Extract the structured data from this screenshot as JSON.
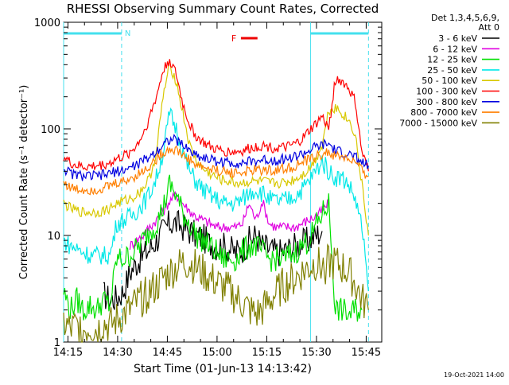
{
  "chart_data": {
    "type": "line",
    "title": "RHESSI Observing Summary Count Rates, Corrected",
    "xlabel": "Start Time (01-Jun-13 14:13:42)",
    "ylabel": "Corrected Count Rate (s⁻¹ detector⁻¹)",
    "y_scale": "log",
    "xlim_minutes": [
      0,
      96
    ],
    "ylim": [
      1,
      1000
    ],
    "x_ticks": [
      {
        "t": 1.3,
        "label": "14:15"
      },
      {
        "t": 16.3,
        "label": "14:30"
      },
      {
        "t": 31.3,
        "label": "14:45"
      },
      {
        "t": 46.3,
        "label": "15:00"
      },
      {
        "t": 61.3,
        "label": "15:15"
      },
      {
        "t": 76.3,
        "label": "15:30"
      },
      {
        "t": 91.3,
        "label": "15:45"
      }
    ],
    "y_ticks": [
      {
        "v": 1,
        "label": "1"
      },
      {
        "v": 10,
        "label": "10"
      },
      {
        "v": 100,
        "label": "100"
      },
      {
        "v": 1000,
        "label": "1000"
      }
    ],
    "legend_header": [
      "Det 1,3,4,5,6,9,",
      "Att 0"
    ],
    "legend_position": "right",
    "flare_marker": {
      "label": "F",
      "t_start": 53.5,
      "t_end": 58.5,
      "color": "#ee0000"
    },
    "night_marker": {
      "label": "N",
      "t_start": 0,
      "t_end": 17.5
    },
    "intervals": [
      [
        0,
        17.5
      ],
      [
        74.5,
        92
      ]
    ],
    "interval_color": "#44e0ee",
    "series": [
      {
        "name": "3 - 6 keV",
        "color": "#000000",
        "t": [
          12,
          14,
          16,
          18,
          20,
          22,
          24,
          26,
          28,
          30,
          32,
          34,
          36,
          38,
          40,
          42,
          44,
          46,
          48,
          50,
          52,
          54,
          56,
          58,
          60,
          62,
          64,
          66,
          68,
          70,
          72,
          74,
          76,
          78
        ],
        "v": [
          2.8,
          2.5,
          2.6,
          3.0,
          4.5,
          5.5,
          6.5,
          7.5,
          9,
          11,
          13,
          13,
          12,
          11,
          10,
          9.5,
          8.5,
          8,
          8,
          7.5,
          7,
          7.5,
          9,
          10,
          8,
          7.5,
          7,
          7,
          7.5,
          8,
          8.5,
          9,
          10,
          11
        ]
      },
      {
        "name": "6 - 12 keV",
        "color": "#e000e0",
        "t": [
          20,
          22,
          24,
          26,
          28,
          30,
          32,
          34,
          36,
          38,
          40,
          42,
          44,
          46,
          48,
          50,
          52,
          54,
          56,
          58,
          60,
          62,
          64,
          66,
          68,
          70,
          72,
          74,
          76,
          78,
          80
        ],
        "v": [
          8,
          9,
          10,
          12,
          14,
          17,
          21,
          24,
          20,
          17,
          15,
          14,
          13,
          12,
          12,
          12,
          12,
          13,
          20,
          14,
          21,
          13,
          12,
          12,
          12,
          12,
          13,
          14,
          15,
          17,
          20
        ]
      },
      {
        "name": "12 - 25 keV",
        "color": "#00e000",
        "t": [
          0,
          2,
          4,
          6,
          8,
          10,
          12,
          14,
          16,
          18,
          20,
          22,
          24,
          26,
          28,
          30,
          32,
          34,
          36,
          38,
          40,
          42,
          44,
          46,
          48,
          50,
          52,
          54,
          56,
          58,
          60,
          62,
          64,
          66,
          68,
          70,
          72,
          74,
          76,
          78,
          80,
          82,
          84,
          86,
          88,
          90
        ],
        "v": [
          3,
          2,
          2.5,
          2,
          2.2,
          2,
          2.5,
          2.2,
          6,
          6,
          6.5,
          7.5,
          9,
          11,
          13,
          18,
          30,
          24,
          16,
          13,
          10,
          9,
          8,
          7,
          6,
          6,
          6,
          7,
          8,
          8,
          7,
          6,
          6,
          6,
          6.5,
          7,
          8,
          9,
          12,
          16,
          20,
          2,
          2,
          1.8,
          2,
          2
        ]
      },
      {
        "name": "25 - 50 keV",
        "color": "#00e8e8",
        "t": [
          0,
          2,
          4,
          6,
          8,
          10,
          12,
          14,
          16,
          18,
          20,
          22,
          24,
          26,
          28,
          30,
          32,
          34,
          36,
          38,
          40,
          42,
          44,
          46,
          48,
          50,
          52,
          54,
          56,
          58,
          60,
          62,
          64,
          66,
          68,
          70,
          72,
          74,
          76,
          78,
          80,
          82,
          84,
          86,
          88,
          90,
          92
        ],
        "v": [
          9,
          8,
          7.5,
          7,
          6.5,
          6.5,
          6.5,
          6.5,
          13,
          14,
          15,
          17,
          20,
          25,
          35,
          60,
          140,
          100,
          60,
          40,
          32,
          27,
          24,
          22,
          20,
          20,
          20,
          22,
          25,
          27,
          25,
          22,
          21,
          21,
          22,
          24,
          27,
          32,
          40,
          50,
          40,
          35,
          35,
          30,
          22,
          12,
          3
        ]
      },
      {
        "name": "50 - 100 keV",
        "color": "#d8c800",
        "t": [
          0,
          2,
          4,
          6,
          8,
          10,
          12,
          14,
          16,
          18,
          20,
          22,
          24,
          26,
          28,
          30,
          32,
          34,
          36,
          38,
          40,
          42,
          44,
          46,
          48,
          50,
          52,
          54,
          56,
          58,
          60,
          62,
          64,
          66,
          68,
          70,
          72,
          74,
          76,
          78,
          80,
          82,
          84,
          86,
          88,
          90,
          92
        ],
        "v": [
          20,
          18,
          17,
          16.5,
          16.5,
          16.5,
          17,
          18,
          20,
          21,
          22,
          24,
          28,
          35,
          60,
          200,
          400,
          280,
          140,
          70,
          50,
          42,
          38,
          35,
          33,
          32,
          31,
          31,
          32,
          32,
          32,
          31,
          31,
          31,
          32,
          34,
          37,
          42,
          52,
          70,
          150,
          160,
          140,
          120,
          90,
          30,
          10
        ]
      },
      {
        "name": "100 - 300 keV",
        "color": "#ff0000",
        "t": [
          0,
          2,
          4,
          6,
          8,
          10,
          12,
          14,
          16,
          18,
          20,
          22,
          24,
          26,
          28,
          30,
          32,
          34,
          36,
          38,
          40,
          42,
          44,
          46,
          48,
          50,
          52,
          54,
          56,
          58,
          60,
          62,
          64,
          66,
          68,
          70,
          72,
          74,
          76,
          78,
          80,
          82,
          84,
          86,
          88,
          90,
          92
        ],
        "v": [
          55,
          48,
          45,
          44,
          44,
          45,
          46,
          48,
          52,
          55,
          60,
          70,
          90,
          130,
          200,
          350,
          450,
          320,
          170,
          110,
          85,
          75,
          68,
          64,
          62,
          61,
          61,
          62,
          65,
          68,
          70,
          68,
          66,
          66,
          68,
          72,
          80,
          95,
          110,
          130,
          100,
          290,
          280,
          240,
          180,
          60,
          40
        ]
      },
      {
        "name": "300 - 800 keV",
        "color": "#0000e0",
        "t": [
          0,
          2,
          4,
          6,
          8,
          10,
          12,
          14,
          16,
          18,
          20,
          22,
          24,
          26,
          28,
          30,
          32,
          34,
          36,
          38,
          40,
          42,
          44,
          46,
          48,
          50,
          52,
          54,
          56,
          58,
          60,
          62,
          64,
          66,
          68,
          70,
          72,
          74,
          76,
          78,
          80,
          82,
          84,
          86,
          88,
          90,
          92
        ],
        "v": [
          43,
          38,
          37,
          36,
          36,
          36,
          37,
          38,
          40,
          41,
          43,
          46,
          50,
          55,
          62,
          72,
          80,
          78,
          70,
          63,
          57,
          54,
          52,
          50,
          49,
          48,
          48,
          48,
          49,
          50,
          51,
          51,
          51,
          52,
          53,
          55,
          58,
          62,
          67,
          70,
          72,
          62,
          60,
          58,
          54,
          48,
          45
        ]
      },
      {
        "name": "800 - 7000 keV",
        "color": "#ff7f00",
        "t": [
          0,
          2,
          4,
          6,
          8,
          10,
          12,
          14,
          16,
          18,
          20,
          22,
          24,
          26,
          28,
          30,
          32,
          34,
          36,
          38,
          40,
          42,
          44,
          46,
          48,
          50,
          52,
          54,
          56,
          58,
          60,
          62,
          64,
          66,
          68,
          70,
          72,
          74,
          76,
          78,
          80,
          82,
          84,
          86,
          88,
          90,
          92
        ],
        "v": [
          32,
          28,
          27,
          27,
          27,
          27,
          28,
          29,
          31,
          32,
          34,
          37,
          40,
          45,
          52,
          60,
          65,
          63,
          57,
          51,
          46,
          44,
          42,
          41,
          40,
          39,
          39,
          39,
          40,
          41,
          41,
          41,
          41,
          42,
          43,
          45,
          48,
          51,
          55,
          58,
          60,
          55,
          55,
          52,
          48,
          40,
          36
        ]
      },
      {
        "name": "7000 - 15000 keV",
        "color": "#808000",
        "t": [
          0,
          2,
          4,
          6,
          8,
          10,
          12,
          14,
          16,
          18,
          20,
          22,
          24,
          26,
          28,
          30,
          32,
          34,
          36,
          38,
          40,
          42,
          44,
          46,
          48,
          50,
          52,
          54,
          56,
          58,
          60,
          62,
          64,
          66,
          68,
          70,
          72,
          74,
          76,
          78,
          80,
          82,
          84,
          86,
          88,
          90,
          92
        ],
        "v": [
          1.5,
          1.3,
          1.4,
          1.3,
          1.4,
          1.3,
          1.5,
          1.4,
          1.6,
          1.8,
          2.0,
          2.3,
          2.6,
          3.0,
          3.3,
          4.0,
          4.5,
          5.0,
          5.5,
          5.5,
          5.0,
          4.5,
          4.0,
          3.6,
          3.3,
          3.0,
          2.6,
          2.3,
          2.0,
          1.8,
          2.0,
          2.4,
          2.8,
          3.3,
          3.6,
          4.0,
          4.5,
          5.0,
          5.5,
          5.0,
          5.5,
          5.5,
          5.0,
          4.5,
          3.5,
          2.5,
          2.0
        ]
      }
    ]
  },
  "footer": {
    "timestamp": "19-Oct-2021 14:00"
  }
}
